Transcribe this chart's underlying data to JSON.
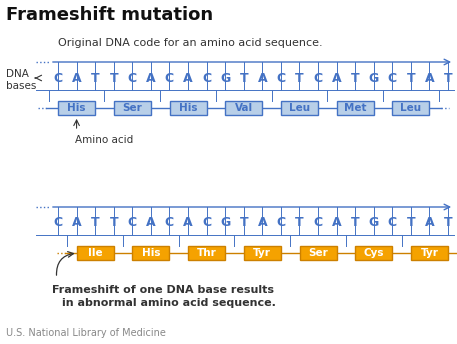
{
  "title": "Frameshift mutation",
  "bg_color": "#ffffff",
  "dna_sequence": [
    "C",
    "A",
    "T",
    "T",
    "C",
    "A",
    "C",
    "A",
    "C",
    "G",
    "T",
    "A",
    "C",
    "T",
    "C",
    "A",
    "T",
    "G",
    "C",
    "T",
    "A",
    "T"
  ],
  "top_amino_acids": [
    "His",
    "Ser",
    "His",
    "Val",
    "Leu",
    "Met",
    "Leu"
  ],
  "bottom_amino_acids": [
    "Ile",
    "His",
    "Thr",
    "Tyr",
    "Ser",
    "Cys",
    "Tyr"
  ],
  "top_aa_bg": "#b8cfe8",
  "top_aa_border": "#4472c4",
  "top_aa_text": "#4472c4",
  "bottom_aa_bg": "#f5a200",
  "bottom_aa_border": "#cc8000",
  "bottom_aa_text": "#ffffff",
  "dna_color": "#4472c4",
  "line_color": "#4472c4",
  "label_color": "#333333",
  "footer": "U.S. National Library of Medicine",
  "top_caption": "Original DNA code for an amino acid sequence.",
  "bottom_caption1": "Frameshift of one DNA base results",
  "bottom_caption2": "in abnormal amino acid sequence.",
  "title_fontsize": 13,
  "caption_fontsize": 8,
  "dna_fontsize": 9,
  "aa_fontsize": 7.5,
  "label_fontsize": 7.5,
  "footer_fontsize": 7
}
